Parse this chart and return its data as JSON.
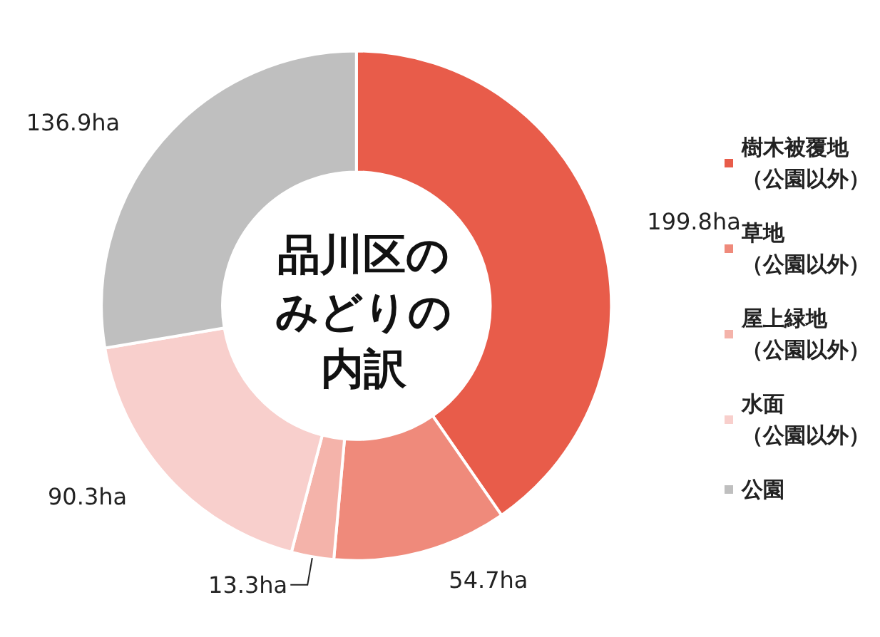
{
  "chart_data": {
    "type": "donut",
    "title": "品川区のみどりの内訳",
    "categories": [
      "樹木被覆地（公園以外）",
      "草地（公園以外）",
      "屋上緑地（公園以外）",
      "水面（公園以外）",
      "公園"
    ],
    "values": [
      199.8,
      54.7,
      13.3,
      90.3,
      136.9
    ],
    "value_labels": [
      "199.8ha",
      "54.7ha",
      "13.3ha",
      "90.3ha",
      "136.9ha"
    ],
    "colors": [
      "#e85c4a",
      "#ef8a7b",
      "#f4b3aa",
      "#f8cfcc",
      "#bfbfbf"
    ],
    "legend": "right"
  }
}
